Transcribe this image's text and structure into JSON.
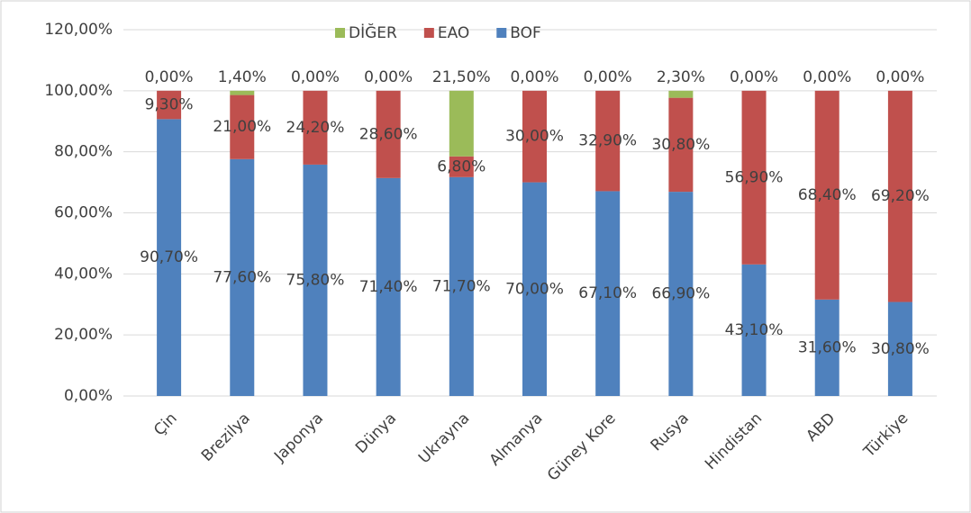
{
  "chart_data": {
    "type": "stacked_bar",
    "categories": [
      "Çin",
      "Brezilya",
      "Japonya",
      "Dünya",
      "Ukrayna",
      "Almanya",
      "Güney Kore",
      "Rusya",
      "Hindistan",
      "ABD",
      "Türkiye"
    ],
    "series": [
      {
        "name": "BOF",
        "color": "#4f81bd",
        "values": [
          90.7,
          77.6,
          75.8,
          71.4,
          71.7,
          70.0,
          67.1,
          66.9,
          43.1,
          31.6,
          30.8
        ],
        "value_labels": [
          "90,70%",
          "77,60%",
          "75,80%",
          "71,40%",
          "71,70%",
          "70,00%",
          "67,10%",
          "66,90%",
          "43,10%",
          "31,60%",
          "30,80%"
        ]
      },
      {
        "name": "EAO",
        "color": "#c0504d",
        "values": [
          9.3,
          21.0,
          24.2,
          28.6,
          6.8,
          30.0,
          32.9,
          30.8,
          56.9,
          68.4,
          69.2
        ],
        "value_labels": [
          "9,30%",
          "21,00%",
          "24,20%",
          "28,60%",
          "6,80%",
          "30,00%",
          "32,90%",
          "30,80%",
          "56,90%",
          "68,40%",
          "69,20%"
        ]
      },
      {
        "name": "DİĞER",
        "color": "#9bbb59",
        "values": [
          0,
          1.4,
          0,
          0,
          21.5,
          0,
          0,
          2.3,
          0,
          0,
          0
        ],
        "value_labels": [
          "0,00%",
          "1,40%",
          "0,00%",
          "0,00%",
          "21,50%",
          "0,00%",
          "0,00%",
          "2,30%",
          "0,00%",
          "0,00%",
          "0,00%"
        ]
      }
    ],
    "ylim": [
      0,
      120
    ],
    "yticks": [
      {
        "value": 0,
        "label": "0,00%"
      },
      {
        "value": 20,
        "label": "20,00%"
      },
      {
        "value": 40,
        "label": "40,00%"
      },
      {
        "value": 60,
        "label": "60,00%"
      },
      {
        "value": 80,
        "label": "80,00%"
      },
      {
        "value": 100,
        "label": "100,00%"
      },
      {
        "value": 120,
        "label": "120,00%"
      }
    ],
    "grid": true,
    "legend": "top"
  }
}
